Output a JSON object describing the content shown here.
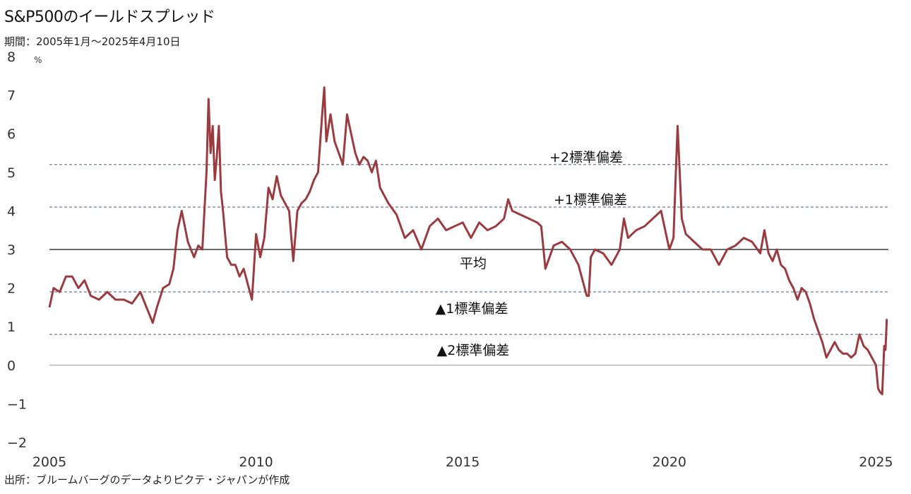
{
  "title": "S&P500のイールドスプレッド",
  "subtitle": "期間：2005年1月～2025年4月10日",
  "source": "出所：ブルームバーグのデータよりピクテ・ジャパンが作成",
  "colors": {
    "series": "#9b3b3f",
    "negative_tick": "#e0241b",
    "band_line": "#4a5a80",
    "mean_line": "#111111",
    "zero_line": "#999999"
  },
  "chart_data": {
    "type": "line",
    "title": "S&P500のイールドスプレッド",
    "unit": "%",
    "ylim": [
      -2,
      8
    ],
    "xlim": [
      2005.0,
      2025.3
    ],
    "yticks": [
      "8",
      "7",
      "6",
      "5",
      "4",
      "3",
      "2",
      "1",
      "0",
      "−1",
      "−2"
    ],
    "ytick_values": [
      8,
      7,
      6,
      5,
      4,
      3,
      2,
      1,
      0,
      -1,
      -2
    ],
    "xticks": [
      "2005",
      "2010",
      "2015",
      "2020",
      "2025"
    ],
    "xtick_values": [
      2005,
      2010,
      2015,
      2020,
      2025
    ],
    "reference_lines": [
      {
        "label": "+2標準偏差",
        "value": 5.2,
        "style": "dashed"
      },
      {
        "label": "+1標準偏差",
        "value": 4.1,
        "style": "dashed"
      },
      {
        "label": "平均",
        "value": 3.0,
        "style": "solid"
      },
      {
        "label": "▲1標準偏差",
        "value": 1.9,
        "style": "dashed"
      },
      {
        "label": "▲2標準偏差",
        "value": 0.8,
        "style": "dashed"
      }
    ],
    "series": [
      {
        "x": [
          2005.0,
          2005.1,
          2005.25,
          2005.4,
          2005.55,
          2005.7,
          2005.85,
          2006.0,
          2006.2,
          2006.4,
          2006.6,
          2006.8,
          2007.0,
          2007.2,
          2007.35,
          2007.5,
          2007.6,
          2007.75,
          2007.9,
          2008.0,
          2008.1,
          2008.2,
          2008.35,
          2008.5,
          2008.6,
          2008.7,
          2008.8,
          2008.85,
          2008.9,
          2008.95,
          2009.0,
          2009.05,
          2009.1,
          2009.15,
          2009.2,
          2009.3,
          2009.4,
          2009.5,
          2009.6,
          2009.7,
          2009.8,
          2009.9,
          2010.0,
          2010.1,
          2010.2,
          2010.3,
          2010.4,
          2010.5,
          2010.6,
          2010.7,
          2010.8,
          2010.9,
          2011.0,
          2011.1,
          2011.2,
          2011.3,
          2011.4,
          2011.5,
          2011.6,
          2011.65,
          2011.7,
          2011.8,
          2011.9,
          2012.0,
          2012.1,
          2012.2,
          2012.3,
          2012.4,
          2012.5,
          2012.6,
          2012.7,
          2012.8,
          2012.9,
          2013.0,
          2013.2,
          2013.4,
          2013.6,
          2013.8,
          2014.0,
          2014.2,
          2014.4,
          2014.6,
          2014.8,
          2015.0,
          2015.2,
          2015.4,
          2015.6,
          2015.8,
          2016.0,
          2016.1,
          2016.2,
          2016.4,
          2016.6,
          2016.8,
          2016.9,
          2017.0,
          2017.2,
          2017.4,
          2017.6,
          2017.8,
          2018.0,
          2018.05,
          2018.1,
          2018.2,
          2018.4,
          2018.6,
          2018.8,
          2018.9,
          2019.0,
          2019.2,
          2019.4,
          2019.6,
          2019.8,
          2020.0,
          2020.1,
          2020.15,
          2020.2,
          2020.25,
          2020.3,
          2020.4,
          2020.5,
          2020.6,
          2020.8,
          2021.0,
          2021.2,
          2021.4,
          2021.6,
          2021.8,
          2022.0,
          2022.2,
          2022.3,
          2022.4,
          2022.5,
          2022.6,
          2022.7,
          2022.8,
          2022.9,
          2023.0,
          2023.1,
          2023.2,
          2023.3,
          2023.4,
          2023.5,
          2023.6,
          2023.7,
          2023.8,
          2023.9,
          2024.0,
          2024.1,
          2024.2,
          2024.3,
          2024.4,
          2024.5,
          2024.6,
          2024.7,
          2024.8,
          2024.9,
          2025.0,
          2025.05,
          2025.1,
          2025.15,
          2025.2,
          2025.23,
          2025.26
        ],
        "y": [
          1.5,
          2.0,
          1.9,
          2.3,
          2.3,
          2.0,
          2.2,
          1.8,
          1.7,
          1.9,
          1.7,
          1.7,
          1.6,
          1.9,
          1.5,
          1.1,
          1.5,
          2.0,
          2.1,
          2.5,
          3.5,
          4.0,
          3.2,
          2.8,
          3.1,
          3.0,
          5.0,
          6.9,
          5.5,
          6.2,
          4.8,
          5.4,
          6.2,
          4.5,
          4.0,
          2.8,
          2.6,
          2.6,
          2.3,
          2.5,
          2.1,
          1.7,
          3.4,
          2.8,
          3.3,
          4.6,
          4.3,
          4.9,
          4.4,
          4.2,
          4.0,
          2.7,
          4.0,
          4.2,
          4.3,
          4.5,
          4.8,
          5.0,
          6.5,
          7.2,
          5.8,
          6.5,
          5.8,
          5.5,
          5.2,
          6.5,
          6.0,
          5.5,
          5.2,
          5.4,
          5.3,
          5.0,
          5.3,
          4.6,
          4.2,
          3.9,
          3.3,
          3.5,
          3.0,
          3.6,
          3.8,
          3.5,
          3.6,
          3.7,
          3.3,
          3.7,
          3.5,
          3.6,
          3.8,
          4.3,
          4.0,
          3.9,
          3.8,
          3.7,
          3.6,
          2.5,
          3.1,
          3.2,
          3.0,
          2.6,
          1.8,
          1.8,
          2.8,
          3.0,
          2.9,
          2.6,
          3.0,
          3.8,
          3.3,
          3.5,
          3.6,
          3.8,
          4.0,
          3.0,
          3.3,
          4.8,
          6.2,
          5.0,
          3.8,
          3.4,
          3.3,
          3.2,
          3.0,
          3.0,
          2.6,
          3.0,
          3.1,
          3.3,
          3.2,
          2.9,
          3.5,
          2.9,
          2.7,
          3.0,
          2.6,
          2.5,
          2.2,
          2.0,
          1.7,
          2.0,
          1.9,
          1.6,
          1.2,
          0.9,
          0.6,
          0.2,
          0.4,
          0.6,
          0.4,
          0.3,
          0.3,
          0.2,
          0.3,
          0.8,
          0.5,
          0.4,
          0.2,
          0.0,
          -0.6,
          -0.7,
          -0.75,
          0.5,
          0.4,
          1.2
        ]
      }
    ]
  }
}
